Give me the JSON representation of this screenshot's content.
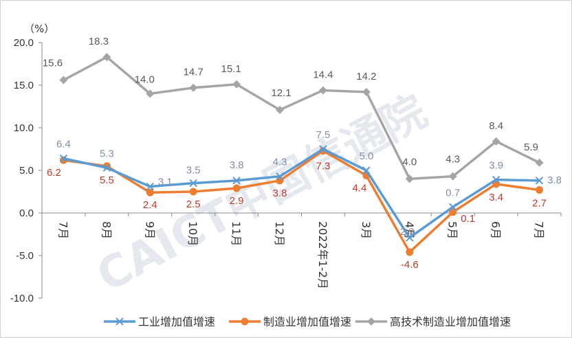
{
  "chart_data": {
    "type": "line",
    "ylabel": "（%）",
    "ylim": [
      -10,
      20
    ],
    "yticks": [
      "20.0",
      "15.0",
      "10.0",
      "5.0",
      "0.0",
      "-5.0",
      "-10.0"
    ],
    "ytick_values": [
      20,
      15,
      10,
      5,
      0,
      -5,
      -10
    ],
    "categories": [
      "7月",
      "8月",
      "9月",
      "10月",
      "11月",
      "12月",
      "2022年1-2月",
      "3月",
      "4月",
      "5月",
      "6月",
      "7月"
    ],
    "grid": false,
    "legend_position": "bottom",
    "watermark": "CAICT中国信通院",
    "series": [
      {
        "name": "工业增加值增速",
        "color": "#5b9bd5",
        "marker": "x",
        "values": [
          6.4,
          5.3,
          3.1,
          3.5,
          3.8,
          4.3,
          7.5,
          5.0,
          -2.9,
          0.7,
          3.9,
          3.8
        ],
        "labels": [
          "6.4",
          "5.3",
          "3.1",
          "3.5",
          "3.8",
          "4.3",
          "7.5",
          "5.0",
          "-2.9",
          "0.7",
          "3.9",
          "3.8"
        ],
        "label_color": "#7f8fa9"
      },
      {
        "name": "制造业增加值增速",
        "color": "#ed7d31",
        "marker": "circle",
        "values": [
          6.2,
          5.5,
          2.4,
          2.5,
          2.9,
          3.8,
          7.3,
          4.4,
          -4.6,
          0.1,
          3.4,
          2.7
        ],
        "labels": [
          "6.2",
          "5.5",
          "2.4",
          "2.5",
          "2.9",
          "3.8",
          "7.3",
          "4.4",
          "-4.6",
          "0.1",
          "3.4",
          "2.7"
        ],
        "label_color": "#c0392b"
      },
      {
        "name": "高技术制造业增加值增速",
        "color": "#a5a5a5",
        "marker": "diamond",
        "values": [
          15.6,
          18.3,
          14.0,
          14.7,
          15.1,
          12.1,
          14.4,
          14.2,
          4.0,
          4.3,
          8.4,
          5.9
        ],
        "labels": [
          "15.6",
          "18.3",
          "14.0",
          "14.7",
          "15.1",
          "12.1",
          "14.4",
          "14.2",
          "4.0",
          "4.3",
          "8.4",
          "5.9"
        ],
        "label_color": "#595959"
      }
    ]
  }
}
